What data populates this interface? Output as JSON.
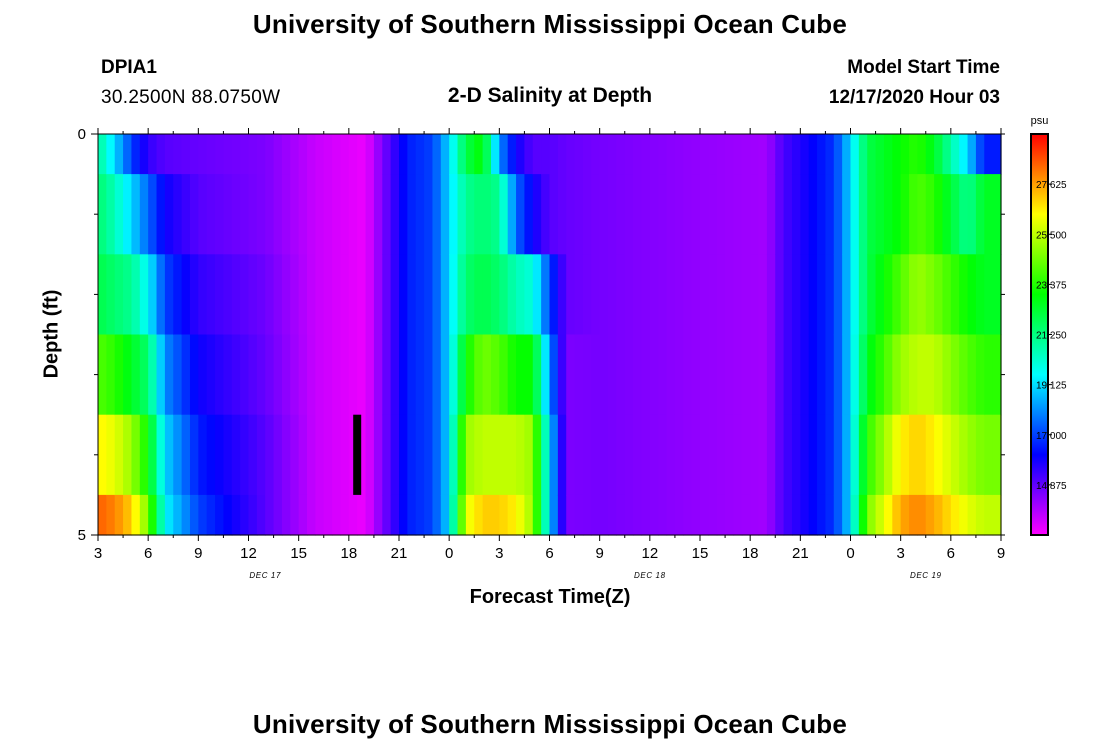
{
  "page": {
    "title_top": "University of Southern Mississippi Ocean Cube",
    "title_bottom": "University of Southern Mississippi Ocean Cube",
    "station_id": "DPIA1",
    "station_position": "30.2500N 88.0750W",
    "subtitle": "2-D Salinity at Depth",
    "model_start_label": "Model Start Time",
    "model_start_value": "12/17/2020 Hour 03"
  },
  "chart_data": {
    "type": "heatmap",
    "title": "2-D Salinity at Depth",
    "xlabel": "Forecast Time(Z)",
    "ylabel": "Depth (ft)",
    "x_hours_from_start": [
      0,
      54
    ],
    "y_range": [
      0,
      5
    ],
    "y_tick_labels": [
      "0",
      "5"
    ],
    "x_tick_labels": [
      "3",
      "6",
      "9",
      "12",
      "15",
      "18",
      "21",
      "0",
      "3",
      "6",
      "9",
      "12",
      "15",
      "18",
      "21",
      "0",
      "3",
      "6",
      "9"
    ],
    "date_labels": [
      {
        "text": "DEC 17",
        "hour": 10
      },
      {
        "text": "DEC 18",
        "hour": 33
      },
      {
        "text": "DEC 19",
        "hour": 49.5
      }
    ],
    "marker": {
      "hour": 15.5,
      "depth_top": 3.5,
      "depth_bottom": 4.5
    },
    "colorbar": {
      "unit": "psu",
      "min": 12.75,
      "max": 29.75,
      "tick_labels": [
        "14.875",
        "17.000",
        "19.125",
        "21.250",
        "23.375",
        "25.500",
        "27.625"
      ],
      "colors": [
        "#ff00ff",
        "#8000ff",
        "#0000ff",
        "#0080ff",
        "#00ffff",
        "#00ff80",
        "#00ff00",
        "#80ff00",
        "#ffff00",
        "#ff8000",
        "#ff0000"
      ]
    },
    "depth_rows": [
      0,
      1,
      2,
      3,
      4,
      5
    ],
    "salinity_keyframes": [
      {
        "h": 0,
        "values": [
          21,
          21.5,
          22,
          24,
          26.5,
          28.5
        ]
      },
      {
        "h": 1,
        "values": [
          19,
          20.5,
          21.5,
          23.5,
          26,
          28
        ]
      },
      {
        "h": 2,
        "values": [
          17,
          19,
          21,
          22.5,
          25,
          27
        ]
      },
      {
        "h": 3,
        "values": [
          15.5,
          17.5,
          19.5,
          21.5,
          23,
          24.5
        ]
      },
      {
        "h": 4,
        "values": [
          15,
          16,
          17,
          18,
          19,
          19.5
        ]
      },
      {
        "h": 6,
        "values": [
          14.8,
          15,
          15.5,
          16,
          16.5,
          17
        ]
      },
      {
        "h": 10,
        "values": [
          14.5,
          14.5,
          14.7,
          14.8,
          15,
          15
        ]
      },
      {
        "h": 13,
        "values": [
          13.5,
          13.5,
          13.5,
          13.5,
          13.5,
          13.5
        ]
      },
      {
        "h": 16,
        "values": [
          13,
          13,
          13,
          13,
          13,
          13
        ]
      },
      {
        "h": 17,
        "values": [
          14.5,
          14.5,
          14.5,
          14.5,
          14.5,
          14.5
        ]
      },
      {
        "h": 18.5,
        "values": [
          16.5,
          16.5,
          16.5,
          16.5,
          16.5,
          16.5
        ]
      },
      {
        "h": 20,
        "values": [
          17,
          17,
          17,
          17,
          17,
          17
        ]
      },
      {
        "h": 21,
        "values": [
          19,
          19,
          19,
          19,
          19,
          19
        ]
      },
      {
        "h": 22,
        "values": [
          22,
          21,
          21.5,
          23,
          25,
          26
        ]
      },
      {
        "h": 23,
        "values": [
          23,
          21.5,
          22,
          24.5,
          25.5,
          27
        ]
      },
      {
        "h": 24,
        "values": [
          18,
          21,
          21.5,
          24,
          25.5,
          27
        ]
      },
      {
        "h": 25,
        "values": [
          16,
          17.5,
          20.5,
          23,
          25.5,
          26.5
        ]
      },
      {
        "h": 26,
        "values": [
          15,
          16,
          20,
          23,
          25,
          25
        ]
      },
      {
        "h": 27,
        "values": [
          15,
          15,
          17,
          18,
          19,
          19
        ]
      },
      {
        "h": 28,
        "values": [
          14.8,
          14.8,
          14.8,
          14.5,
          14.5,
          14.5
        ]
      },
      {
        "h": 30,
        "values": [
          14.6,
          14.6,
          14.6,
          14.6,
          14.6,
          14.6
        ]
      },
      {
        "h": 36,
        "values": [
          14.2,
          14.2,
          14.2,
          14.2,
          14.2,
          14.2
        ]
      },
      {
        "h": 40,
        "values": [
          14,
          14,
          14,
          14,
          14,
          14
        ]
      },
      {
        "h": 41,
        "values": [
          15.2,
          15.2,
          15.2,
          15.2,
          15.2,
          15.2
        ]
      },
      {
        "h": 44,
        "values": [
          16.8,
          16.8,
          16.8,
          16.8,
          16.8,
          16.8
        ]
      },
      {
        "h": 45,
        "values": [
          19,
          19,
          19,
          19,
          19,
          19
        ]
      },
      {
        "h": 46,
        "values": [
          22,
          22,
          22,
          22.5,
          23.5,
          24.5
        ]
      },
      {
        "h": 48,
        "values": [
          23,
          23,
          24,
          25,
          26.5,
          27.5
        ]
      },
      {
        "h": 49,
        "values": [
          23.5,
          24,
          25,
          25.5,
          27,
          28
        ]
      },
      {
        "h": 50,
        "values": [
          22.5,
          23.5,
          24.5,
          25.5,
          26.5,
          27.5
        ]
      },
      {
        "h": 52,
        "values": [
          19,
          21,
          23,
          24,
          25,
          26
        ]
      },
      {
        "h": 53,
        "values": [
          16.5,
          22.5,
          22.5,
          23.5,
          24.5,
          25.5
        ]
      },
      {
        "h": 54,
        "values": [
          16.5,
          22.5,
          22.5,
          23.5,
          24.5,
          25.5
        ]
      }
    ]
  }
}
